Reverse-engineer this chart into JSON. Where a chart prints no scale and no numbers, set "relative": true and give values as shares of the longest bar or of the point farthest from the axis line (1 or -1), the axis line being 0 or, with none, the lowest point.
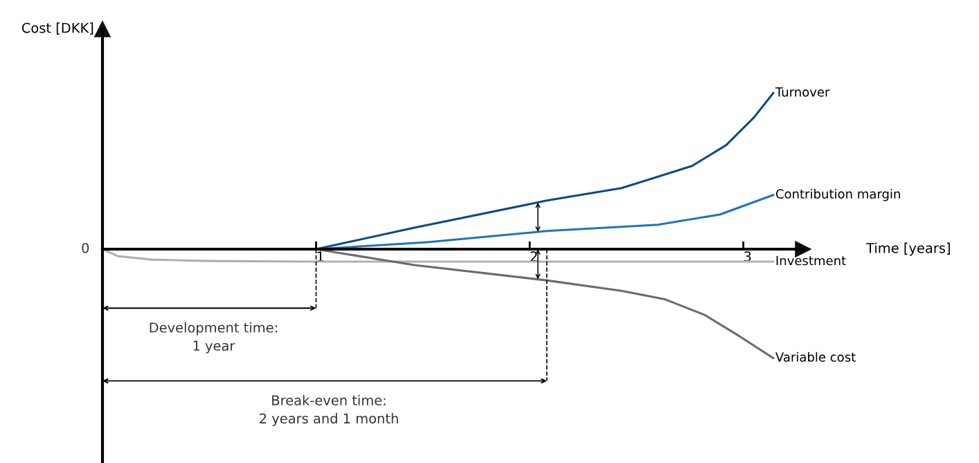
{
  "chart_data": {
    "type": "line",
    "relative": true,
    "xlabel": "Time [years]",
    "ylabel": "Cost [DKK]",
    "xlim": [
      0,
      3.28
    ],
    "xticks": [
      1,
      2,
      3
    ],
    "grid": false,
    "legend": false,
    "marker": "none",
    "line_style": "solid",
    "series": [
      {
        "name": "Turnover",
        "color": "#0b4a8a",
        "x": [
          1.0,
          1.46,
          2.08,
          2.43,
          2.76,
          2.92,
          3.05,
          3.14
        ],
        "values": [
          0,
          0.138,
          0.311,
          0.391,
          0.533,
          0.667,
          0.844,
          1.0
        ]
      },
      {
        "name": "Contribution margin",
        "color": "#1f74bd",
        "x": [
          1.0,
          1.52,
          2.08,
          2.6,
          2.89,
          3.14
        ],
        "values": [
          0,
          0.044,
          0.116,
          0.156,
          0.222,
          0.347
        ]
      },
      {
        "name": "Investment",
        "color": "#b0b0b0",
        "x": [
          0,
          0.07,
          0.23,
          0.49,
          0.98,
          3.14
        ],
        "values": [
          0,
          -0.044,
          -0.067,
          -0.076,
          -0.08,
          -0.08
        ]
      },
      {
        "name": "Variable cost",
        "color": "#6b6b6b",
        "x": [
          1.0,
          1.46,
          2.08,
          2.43,
          2.63,
          2.82,
          2.98,
          3.14
        ],
        "values": [
          0,
          -0.102,
          -0.2,
          -0.267,
          -0.32,
          -0.422,
          -0.556,
          -0.698
        ]
      }
    ],
    "ref_lines": [
      {
        "axis": "x",
        "value": 1,
        "color": "#000000",
        "line_style": "dashed"
      },
      {
        "axis": "x",
        "value": 2.08,
        "color": "#000000",
        "line_style": "dashed"
      }
    ],
    "annotations": [
      {
        "text": "0",
        "x": 0,
        "y": 0
      },
      "Development time:\n1 year",
      "Break-even time:\n2 years and 1 month"
    ]
  }
}
